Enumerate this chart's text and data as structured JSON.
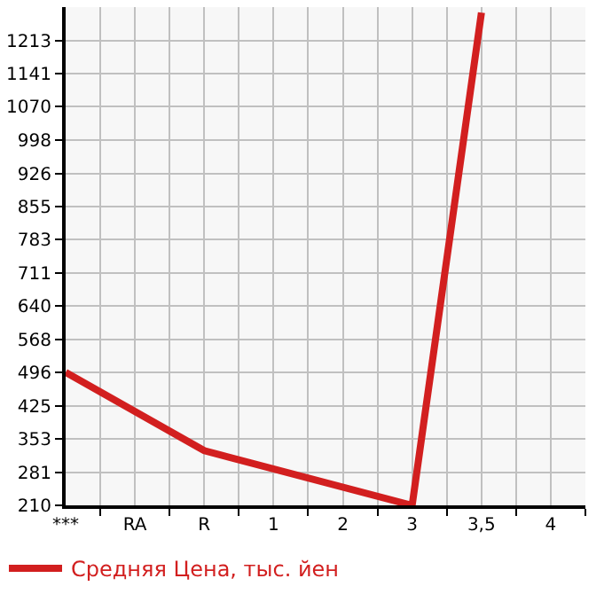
{
  "chart_data": {
    "type": "line",
    "categories": [
      "***",
      "RA",
      "R",
      "1",
      "2",
      "3",
      "3,5",
      "4"
    ],
    "series": [
      {
        "name": "Средняя Цена, тыс. йен",
        "color": "#d21f1f",
        "values": [
          497,
          null,
          328,
          null,
          null,
          210,
          1273,
          null
        ]
      }
    ],
    "ylim": [
      210,
      1285
    ],
    "yticks": [
      210,
      281,
      353,
      425,
      496,
      568,
      640,
      711,
      783,
      855,
      926,
      998,
      1070,
      1141,
      1213
    ],
    "grid": true,
    "legend": "bottom left",
    "marker": "none",
    "line_style": "solid"
  }
}
